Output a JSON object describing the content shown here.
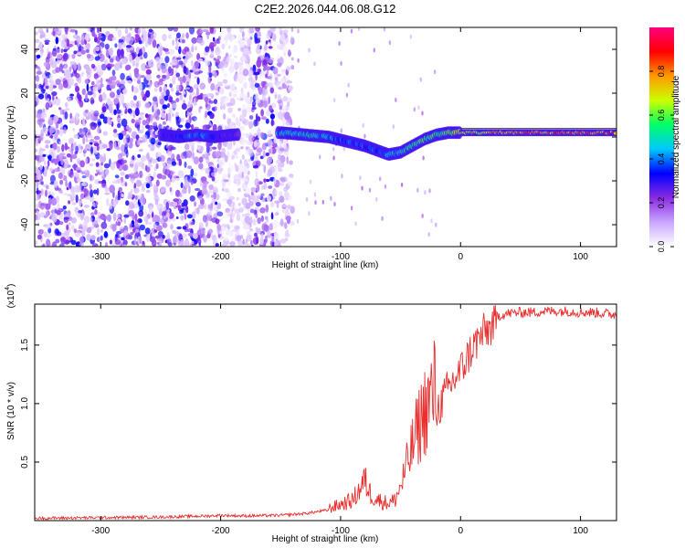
{
  "figure_title": "C2E2.2026.044.06.08.G12",
  "chart_data": [
    {
      "type": "heatmap",
      "panel": "spectrogram",
      "xlabel": "Height of straight line (km)",
      "ylabel": "Frequency (Hz)",
      "xlim": [
        -355,
        130
      ],
      "ylim": [
        -50,
        50
      ],
      "x_ticks": [
        -300,
        -200,
        -100,
        0,
        100
      ],
      "x_tick_labels": [
        "-300",
        "-200",
        "-100",
        "0",
        "100"
      ],
      "y_ticks": [
        -40,
        -20,
        0,
        20,
        40
      ],
      "y_tick_labels": [
        "-40",
        "-20",
        "0",
        "20",
        "40"
      ],
      "noise_region_x": [
        -355,
        -140
      ],
      "noise_gap_x": [
        -200,
        -175
      ],
      "signal_track": {
        "x": [
          -250,
          -235,
          -220,
          -205,
          -190,
          -150,
          -130,
          -110,
          -95,
          -80,
          -70,
          -60,
          -50,
          -40,
          -30,
          -20,
          -10,
          0,
          20,
          50,
          80,
          100,
          130
        ],
        "f": [
          1,
          0,
          1,
          0,
          1,
          2,
          1,
          0,
          -2,
          -4,
          -6,
          -8,
          -7,
          -4,
          -1,
          1,
          2,
          2,
          2,
          2,
          2,
          2,
          2
        ],
        "amp": [
          0.25,
          0.35,
          0.45,
          0.35,
          0.25,
          0.45,
          0.5,
          0.45,
          0.4,
          0.38,
          0.4,
          0.45,
          0.5,
          0.55,
          0.6,
          0.6,
          0.65,
          0.7,
          0.75,
          0.8,
          0.85,
          0.85,
          0.85
        ]
      },
      "colorbar": {
        "label": "Normalized spectral amplitude",
        "range": [
          0,
          1
        ],
        "ticks": [
          0.0,
          0.2,
          0.4,
          0.6,
          0.8
        ],
        "tick_labels": [
          "0.0",
          "0.2",
          "0.4",
          "0.6",
          "0.8"
        ],
        "colors": [
          "#ffffff",
          "#c9a6ff",
          "#8a2be2",
          "#0000ff",
          "#00c8ff",
          "#00ff66",
          "#ccff00",
          "#ff9900",
          "#ff0000",
          "#ff0080"
        ]
      }
    },
    {
      "type": "line",
      "panel": "snr",
      "xlabel": "Height of straight line (km)",
      "ylabel": "SNR (10 * v/v)",
      "y_multiplier_label": "(x10",
      "y_multiplier_exponent": "4",
      "y_multiplier_close": ")",
      "xlim": [
        -355,
        130
      ],
      "ylim": [
        0,
        1.85
      ],
      "x_ticks": [
        -300,
        -200,
        -100,
        0,
        100
      ],
      "x_tick_labels": [
        "-300",
        "-200",
        "-100",
        "0",
        "100"
      ],
      "y_ticks": [
        0.5,
        1.0,
        1.5
      ],
      "y_tick_labels": [
        "0.5",
        "1.0",
        "1.5"
      ],
      "line_color": "#e8302f",
      "series": [
        {
          "name": "SNR",
          "x": [
            -355,
            -300,
            -250,
            -210,
            -200,
            -180,
            -150,
            -130,
            -110,
            -100,
            -90,
            -85,
            -80,
            -75,
            -70,
            -65,
            -60,
            -55,
            -50,
            -45,
            -40,
            -35,
            -30,
            -25,
            -20,
            -15,
            -10,
            -5,
            0,
            5,
            10,
            15,
            20,
            25,
            30,
            40,
            50,
            60,
            70,
            80,
            90,
            100,
            110,
            120,
            130
          ],
          "y": [
            0.02,
            0.025,
            0.03,
            0.04,
            0.045,
            0.04,
            0.045,
            0.06,
            0.09,
            0.12,
            0.15,
            0.22,
            0.3,
            0.2,
            0.16,
            0.14,
            0.13,
            0.15,
            0.25,
            0.4,
            0.55,
            0.7,
            0.82,
            0.9,
            1.0,
            1.1,
            1.2,
            1.28,
            1.35,
            1.45,
            1.55,
            1.62,
            1.68,
            1.72,
            1.75,
            1.77,
            1.78,
            1.78,
            1.79,
            1.79,
            1.79,
            1.78,
            1.78,
            1.77,
            1.76
          ]
        }
      ]
    }
  ]
}
